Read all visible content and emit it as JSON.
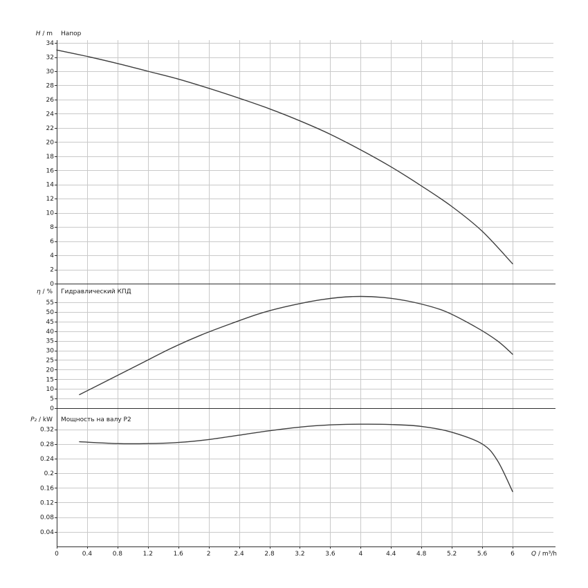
{
  "page": {
    "background": "#ffffff"
  },
  "x_axis": {
    "label": "Q / m³/h",
    "tick_values": [
      0,
      0.4,
      0.8,
      1.2,
      1.6,
      2,
      2.4,
      2.8,
      3.2,
      3.6,
      4,
      4.4,
      4.8,
      5.2,
      5.6,
      6
    ],
    "tick_labels": [
      "0",
      "0.4",
      "0.8",
      "1.2",
      "1.6",
      "2",
      "2.4",
      "2.8",
      "3.2",
      "3.6",
      "4",
      "4.4",
      "4.8",
      "5.2",
      "5.6",
      "6"
    ],
    "range": [
      0,
      6.54
    ]
  },
  "chart_data": [
    {
      "type": "line",
      "title": "Напор",
      "ylabel": "H / m",
      "ylim": [
        0,
        34.4
      ],
      "grid": true,
      "ytick_values": [
        0,
        2,
        4,
        6,
        8,
        10,
        12,
        14,
        16,
        18,
        20,
        22,
        24,
        26,
        28,
        30,
        32,
        34
      ],
      "ytick_labels": [
        "0",
        "2",
        "4",
        "6",
        "8",
        "10",
        "12",
        "14",
        "16",
        "18",
        "20",
        "22",
        "24",
        "26",
        "28",
        "30",
        "32",
        "34"
      ],
      "x": [
        0,
        0.4,
        0.8,
        1.2,
        1.6,
        2,
        2.4,
        2.8,
        3.2,
        3.6,
        4,
        4.4,
        4.8,
        5.2,
        5.6,
        6
      ],
      "y": [
        33,
        32.1,
        31.1,
        30,
        28.9,
        27.6,
        26.2,
        24.7,
        23,
        21.1,
        18.9,
        16.5,
        13.8,
        10.9,
        7.4,
        2.8
      ]
    },
    {
      "type": "line",
      "title": "Гидравлический КПД",
      "ylabel": "η / %",
      "ylim": [
        0,
        64
      ],
      "grid": true,
      "ytick_values": [
        0,
        5,
        10,
        15,
        20,
        25,
        30,
        35,
        40,
        45,
        50,
        55
      ],
      "ytick_labels": [
        "0",
        "5",
        "10",
        "15",
        "20",
        "25",
        "30",
        "35",
        "40",
        "45",
        "50",
        "55"
      ],
      "x": [
        0.3,
        0.7,
        1.1,
        1.5,
        1.9,
        2.3,
        2.7,
        3.1,
        3.5,
        3.9,
        4.3,
        4.7,
        5.1,
        5.5,
        5.8,
        6
      ],
      "y": [
        7,
        15,
        23,
        31,
        38,
        44,
        49.5,
        53.5,
        56.5,
        58,
        57.5,
        55,
        50.5,
        42.5,
        35,
        28
      ]
    },
    {
      "type": "line",
      "title": "Мощность на валу P2",
      "ylabel": "P₂ / kW",
      "ylim": [
        0,
        0.374
      ],
      "grid": true,
      "ytick_values": [
        0.04,
        0.08,
        0.12,
        0.16,
        0.2,
        0.24,
        0.28,
        0.32
      ],
      "ytick_labels": [
        "0.04",
        "0.08",
        "0.12",
        "0.16",
        "0.2",
        "0.24",
        "0.28",
        "0.32"
      ],
      "x": [
        0.3,
        0.8,
        1.2,
        1.6,
        2,
        2.4,
        2.8,
        3.2,
        3.6,
        4,
        4.4,
        4.8,
        5.2,
        5.6,
        5.8,
        6
      ],
      "y": [
        0.286,
        0.281,
        0.281,
        0.284,
        0.292,
        0.304,
        0.316,
        0.326,
        0.332,
        0.334,
        0.333,
        0.328,
        0.312,
        0.28,
        0.235,
        0.15
      ]
    }
  ],
  "colors": {
    "curve": "#3d3d3d",
    "grid": "#c9c9c9",
    "axis": "#2e2e2e",
    "text": "#1a1a1a",
    "background": "#ffffff"
  }
}
